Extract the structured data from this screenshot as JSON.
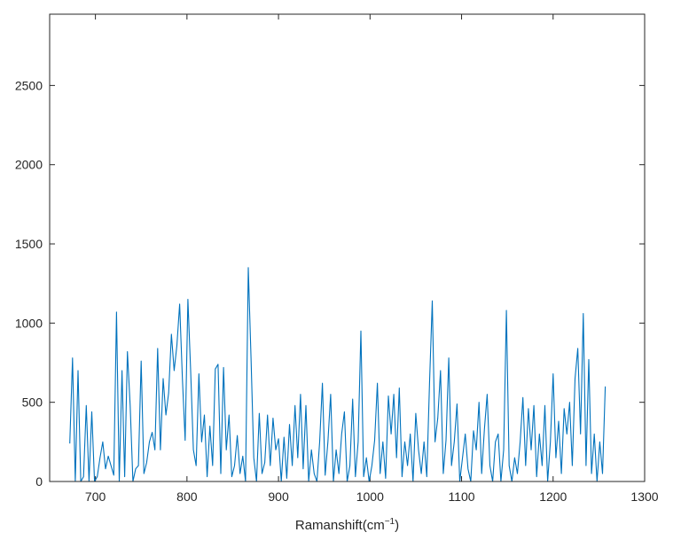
{
  "chart_data": {
    "type": "line",
    "title": "",
    "xlabel": {
      "text": "Ramanshift(cm",
      "superscript": "−1",
      "suffix": ")"
    },
    "ylabel": "",
    "xlim": [
      650,
      1300
    ],
    "ylim": [
      0,
      2950
    ],
    "xticks": [
      700,
      800,
      900,
      1000,
      1100,
      1200,
      1300
    ],
    "yticks": [
      0,
      500,
      1000,
      1500,
      2000,
      2500
    ],
    "grid": false,
    "line_color": "#0072BD",
    "series": [
      {
        "x": [
          672,
          675,
          678,
          681,
          684,
          687,
          690,
          693,
          696,
          699,
          702,
          705,
          708,
          711,
          714,
          717,
          720,
          723,
          726,
          729,
          732,
          735,
          738,
          741,
          744,
          747,
          750,
          753,
          756,
          759,
          762,
          765,
          768,
          771,
          774,
          777,
          780,
          783,
          786,
          789,
          792,
          795,
          798,
          801,
          804,
          807,
          810,
          813,
          816,
          819,
          822,
          825,
          828,
          831,
          834,
          837,
          840,
          843,
          846,
          849,
          852,
          855,
          858,
          861,
          864,
          867,
          870,
          873,
          876,
          879,
          882,
          885,
          888,
          891,
          894,
          897,
          900,
          903,
          906,
          909,
          912,
          915,
          918,
          921,
          924,
          927,
          930,
          933,
          936,
          939,
          942,
          945,
          948,
          951,
          954,
          957,
          960,
          963,
          966,
          969,
          972,
          975,
          978,
          981,
          984,
          987,
          990,
          993,
          996,
          999,
          1002,
          1005,
          1008,
          1011,
          1014,
          1017,
          1020,
          1023,
          1026,
          1029,
          1032,
          1035,
          1038,
          1041,
          1044,
          1047,
          1050,
          1053,
          1056,
          1059,
          1062,
          1065,
          1068,
          1071,
          1074,
          1077,
          1080,
          1083,
          1086,
          1089,
          1092,
          1095,
          1098,
          1101,
          1104,
          1107,
          1110,
          1113,
          1116,
          1119,
          1122,
          1125,
          1128,
          1131,
          1134,
          1137,
          1140,
          1143,
          1146,
          1149,
          1152,
          1155,
          1158,
          1161,
          1164,
          1167,
          1170,
          1173,
          1176,
          1179,
          1182,
          1185,
          1188,
          1191,
          1194,
          1197,
          1200,
          1203,
          1206,
          1209,
          1212,
          1215,
          1218,
          1221,
          1224,
          1227,
          1230,
          1233,
          1236,
          1239,
          1242,
          1245,
          1248,
          1251,
          1254,
          1257
        ],
        "y": [
          240,
          780,
          0,
          700,
          0,
          30,
          480,
          0,
          440,
          0,
          30,
          150,
          250,
          80,
          160,
          100,
          40,
          1070,
          0,
          700,
          30,
          820,
          480,
          0,
          80,
          100,
          760,
          50,
          120,
          250,
          310,
          200,
          840,
          200,
          650,
          420,
          560,
          930,
          700,
          860,
          1120,
          650,
          260,
          1150,
          700,
          200,
          100,
          680,
          250,
          420,
          30,
          350,
          100,
          710,
          740,
          50,
          720,
          200,
          420,
          30,
          100,
          290,
          50,
          160,
          0,
          1350,
          780,
          150,
          0,
          430,
          50,
          120,
          420,
          100,
          400,
          200,
          270,
          0,
          280,
          20,
          360,
          100,
          480,
          150,
          550,
          80,
          480,
          0,
          200,
          50,
          0,
          250,
          620,
          40,
          250,
          550,
          0,
          200,
          50,
          300,
          440,
          0,
          100,
          520,
          30,
          250,
          950,
          30,
          150,
          0,
          100,
          260,
          620,
          50,
          250,
          20,
          540,
          300,
          550,
          150,
          590,
          30,
          250,
          100,
          300,
          0,
          430,
          200,
          50,
          250,
          30,
          620,
          1140,
          250,
          400,
          700,
          50,
          260,
          780,
          100,
          250,
          490,
          0,
          150,
          300,
          80,
          0,
          320,
          200,
          500,
          50,
          330,
          550,
          100,
          0,
          250,
          300,
          0,
          200,
          1080,
          100,
          0,
          150,
          50,
          250,
          530,
          100,
          460,
          200,
          480,
          30,
          300,
          100,
          480,
          0,
          250,
          680,
          150,
          380,
          50,
          460,
          300,
          500,
          100,
          650,
          840,
          300,
          1060,
          100,
          770,
          50,
          300,
          0,
          250,
          50,
          600
        ]
      }
    ]
  }
}
